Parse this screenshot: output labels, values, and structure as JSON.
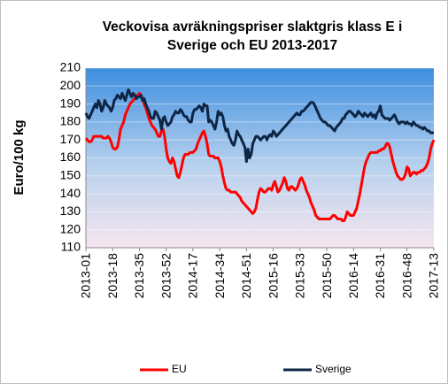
{
  "chart_data": {
    "type": "line",
    "title": [
      "Veckovisa avräkningspriser slaktgris klass E i",
      "Sverige och EU 2013-2017"
    ],
    "ylabel": "Euro/100 kg",
    "ylim": [
      110,
      210
    ],
    "yticks": [
      110,
      120,
      130,
      140,
      150,
      160,
      170,
      180,
      190,
      200,
      210
    ],
    "grid": true,
    "legend": "bottom",
    "categories": [
      "2013-01",
      null,
      null,
      null,
      null,
      null,
      null,
      null,
      null,
      null,
      null,
      null,
      null,
      null,
      null,
      null,
      null,
      "2013-18",
      null,
      null,
      null,
      null,
      null,
      null,
      null,
      null,
      null,
      null,
      null,
      null,
      null,
      null,
      null,
      null,
      "2013-35",
      null,
      null,
      null,
      null,
      null,
      null,
      null,
      null,
      null,
      null,
      null,
      null,
      null,
      null,
      null,
      null,
      "2013-52",
      null,
      null,
      null,
      null,
      null,
      null,
      null,
      null,
      null,
      null,
      null,
      null,
      null,
      null,
      null,
      null,
      "2014-17",
      null,
      null,
      null,
      null,
      null,
      null,
      null,
      null,
      null,
      null,
      null,
      null,
      null,
      null,
      null,
      null,
      "2014-34",
      null,
      null,
      null,
      null,
      null,
      null,
      null,
      null,
      null,
      null,
      null,
      null,
      null,
      null,
      null,
      null,
      "2014-51",
      null,
      null,
      null,
      null,
      null,
      null,
      null,
      null,
      null,
      null,
      null,
      null,
      null,
      null,
      null,
      null,
      "2015-16",
      null,
      null,
      null,
      null,
      null,
      null,
      null,
      null,
      null,
      null,
      null,
      null,
      null,
      null,
      null,
      null,
      "2015-33",
      null,
      null,
      null,
      null,
      null,
      null,
      null,
      null,
      null,
      null,
      null,
      null,
      null,
      null,
      null,
      null,
      "2015-50",
      null,
      null,
      null,
      null,
      null,
      null,
      null,
      null,
      null,
      null,
      null,
      null,
      null,
      null,
      null,
      null,
      "2016-14",
      null,
      null,
      null,
      null,
      null,
      null,
      null,
      null,
      null,
      null,
      null,
      null,
      null,
      null,
      null,
      null,
      "2016-31",
      null,
      null,
      null,
      null,
      null,
      null,
      null,
      null,
      null,
      null,
      null,
      null,
      null,
      null,
      null,
      null,
      "2016-48",
      null,
      null,
      null,
      null,
      null,
      null,
      null,
      null,
      null,
      null,
      null,
      null,
      null,
      null,
      null,
      null,
      "2017-13"
    ],
    "series": [
      {
        "name": "EU",
        "color": "#ff0000",
        "values": [
          171,
          170,
          169,
          169,
          170,
          172,
          172,
          172,
          172,
          172,
          172,
          171,
          171,
          171,
          172,
          171,
          169,
          166,
          165,
          165,
          166,
          170,
          176,
          178,
          180,
          184,
          186,
          188,
          190,
          191,
          192,
          193,
          194,
          195,
          196,
          195,
          193,
          190,
          188,
          185,
          182,
          180,
          178,
          177,
          176,
          174,
          172,
          172,
          175,
          176,
          172,
          165,
          160,
          158,
          157,
          160,
          158,
          154,
          150,
          149,
          152,
          156,
          160,
          162,
          162,
          162,
          163,
          163,
          163,
          164,
          165,
          168,
          170,
          172,
          174,
          175,
          172,
          168,
          162,
          161,
          161,
          161,
          160,
          160,
          160,
          158,
          155,
          150,
          146,
          143,
          142,
          142,
          141,
          141,
          141,
          141,
          140,
          139,
          138,
          136,
          135,
          134,
          133,
          132,
          131,
          130,
          129,
          130,
          132,
          137,
          141,
          143,
          142,
          141,
          141,
          142,
          143,
          143,
          142,
          145,
          147,
          144,
          141,
          142,
          144,
          146,
          149,
          147,
          143,
          142,
          144,
          144,
          143,
          142,
          143,
          145,
          148,
          149,
          147,
          145,
          142,
          140,
          138,
          135,
          133,
          131,
          128,
          127,
          126,
          126,
          126,
          126,
          126,
          126,
          126,
          126,
          127,
          128,
          128,
          127,
          126,
          126,
          126,
          125,
          125,
          127,
          130,
          129,
          128,
          128,
          128,
          130,
          132,
          136,
          140,
          145,
          150,
          155,
          158,
          160,
          162,
          163,
          163,
          163,
          163,
          163,
          164,
          164,
          165,
          165,
          166,
          168,
          168,
          166,
          162,
          158,
          155,
          152,
          150,
          149,
          148,
          148,
          149,
          151,
          155,
          154,
          150,
          151,
          152,
          152,
          151,
          152,
          152,
          153,
          153,
          154,
          155,
          157,
          160,
          165,
          168,
          170
        ]
      },
      {
        "name": "Sverige",
        "color": "#0d2645",
        "values": [
          185,
          183,
          182,
          184,
          186,
          188,
          190,
          188,
          192,
          190,
          186,
          188,
          192,
          190,
          189,
          188,
          186,
          188,
          192,
          193,
          195,
          194,
          193,
          196,
          194,
          192,
          195,
          198,
          196,
          194,
          196,
          195,
          193,
          194,
          194,
          195,
          192,
          193,
          190,
          188,
          186,
          183,
          182,
          182,
          186,
          185,
          183,
          181,
          176,
          182,
          183,
          180,
          178,
          179,
          180,
          183,
          184,
          186,
          185,
          185,
          187,
          186,
          184,
          183,
          183,
          181,
          180,
          180,
          185,
          187,
          187,
          188,
          189,
          188,
          186,
          190,
          189,
          189,
          180,
          181,
          180,
          178,
          176,
          180,
          186,
          184,
          185,
          183,
          178,
          175,
          176,
          172,
          170,
          168,
          167,
          170,
          175,
          173,
          172,
          170,
          168,
          166,
          158,
          165,
          160,
          162,
          168,
          170,
          172,
          172,
          171,
          170,
          171,
          172,
          172,
          170,
          172,
          173,
          172,
          175,
          174,
          172,
          173,
          174,
          175,
          176,
          177,
          178,
          179,
          180,
          181,
          182,
          183,
          184,
          185,
          184,
          184,
          186,
          186,
          187,
          188,
          189,
          190,
          191,
          191,
          190,
          188,
          186,
          184,
          182,
          181,
          180,
          180,
          179,
          178,
          178,
          177,
          176,
          175,
          177,
          178,
          179,
          180,
          182,
          182,
          184,
          185,
          186,
          186,
          185,
          184,
          183,
          184,
          186,
          185,
          184,
          183,
          185,
          184,
          183,
          184,
          185,
          183,
          184,
          182,
          185,
          186,
          189,
          184,
          183,
          182,
          182,
          182,
          181,
          182,
          183,
          184,
          182,
          180,
          179,
          180,
          180,
          180,
          179,
          180,
          179,
          179,
          178,
          180,
          179,
          178,
          178,
          177,
          177,
          176,
          177,
          176,
          175,
          175,
          174,
          174,
          174
        ]
      }
    ]
  }
}
